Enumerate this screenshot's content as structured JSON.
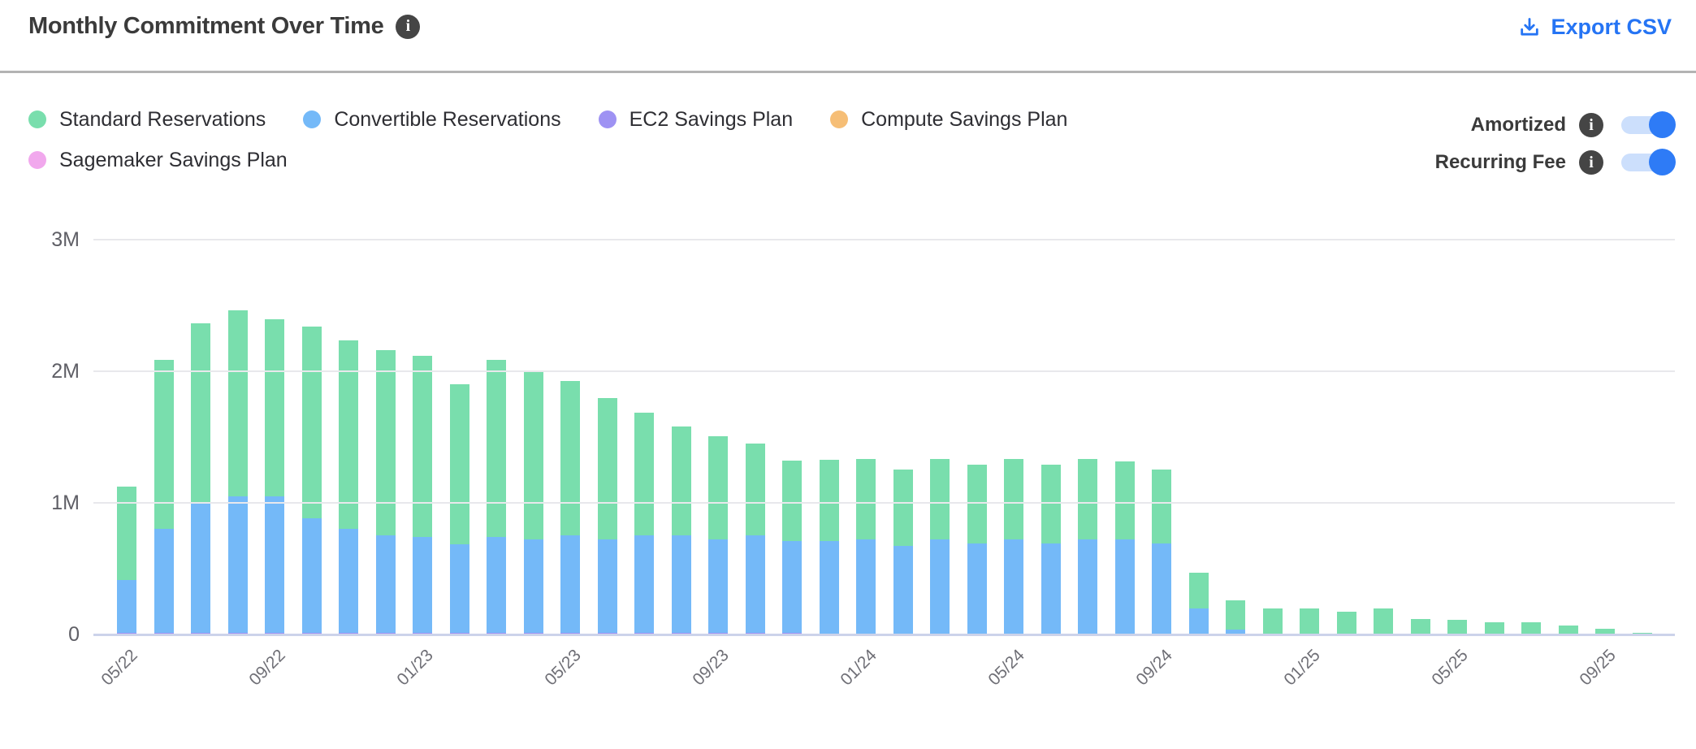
{
  "header": {
    "title": "Monthly Commitment Over Time",
    "title_info_icon": "info-circle-icon",
    "export_label": "Export CSV",
    "export_icon": "download-icon",
    "accent_color": "#2574F4"
  },
  "controls": {
    "amortized_label": "Amortized",
    "amortized_on": true,
    "recurring_fee_label": "Recurring Fee",
    "recurring_fee_on": true,
    "toggle_on_color": "#2E7BF6",
    "toggle_track_color": "#CCDFFC",
    "info_icon_color": "#454545"
  },
  "chart_data": {
    "type": "bar",
    "stacked": true,
    "title": "Monthly Commitment Over Time",
    "xlabel": "",
    "ylabel": "",
    "unit": "millions",
    "ylim": [
      0,
      3
    ],
    "grid": "horizontal",
    "legend_position": "top-left",
    "y_ticks": [
      {
        "label": "3M",
        "value": 3
      },
      {
        "label": "2M",
        "value": 2
      },
      {
        "label": "1M",
        "value": 1
      },
      {
        "label": "0",
        "value": 0
      }
    ],
    "x_tick_every": 4,
    "categories": [
      "05/22",
      "06/22",
      "07/22",
      "08/22",
      "09/22",
      "10/22",
      "11/22",
      "12/22",
      "01/23",
      "02/23",
      "03/23",
      "04/23",
      "05/23",
      "06/23",
      "07/23",
      "08/23",
      "09/23",
      "10/23",
      "11/23",
      "12/23",
      "01/24",
      "02/24",
      "03/24",
      "04/24",
      "05/24",
      "06/24",
      "07/24",
      "08/24",
      "09/24",
      "10/24",
      "11/24",
      "12/24",
      "01/25",
      "02/25",
      "03/25",
      "04/25",
      "05/25",
      "06/25",
      "07/25",
      "08/25",
      "09/25",
      "10/25"
    ],
    "series": [
      {
        "name": "Standard Reservations",
        "color": "#79DEAD",
        "values": [
          0.71,
          1.285,
          1.365,
          1.415,
          1.345,
          1.455,
          1.435,
          1.405,
          1.375,
          1.215,
          1.345,
          1.285,
          1.175,
          1.075,
          0.935,
          0.825,
          0.785,
          0.695,
          0.61,
          0.62,
          0.61,
          0.58,
          0.61,
          0.6,
          0.61,
          0.6,
          0.61,
          0.59,
          0.56,
          0.27,
          0.225,
          0.195,
          0.195,
          0.17,
          0.195,
          0.12,
          0.11,
          0.095,
          0.095,
          0.07,
          0.045,
          0.015
        ]
      },
      {
        "name": "Convertible Reservations",
        "color": "#74B9F8",
        "values": [
          0.4,
          0.79,
          0.99,
          1.04,
          1.04,
          0.87,
          0.79,
          0.74,
          0.73,
          0.67,
          0.73,
          0.71,
          0.74,
          0.71,
          0.74,
          0.74,
          0.71,
          0.74,
          0.7,
          0.71,
          0.72,
          0.67,
          0.72,
          0.69,
          0.72,
          0.69,
          0.72,
          0.72,
          0.69,
          0.2,
          0.035,
          0,
          0,
          0,
          0,
          0,
          0,
          0,
          0,
          0,
          0,
          0
        ]
      },
      {
        "name": "EC2 Savings Plan",
        "color": "#9E92F3",
        "values": [
          0.01,
          0.015,
          0.015,
          0.015,
          0.015,
          0.015,
          0.015,
          0.015,
          0.015,
          0.015,
          0.015,
          0.015,
          0.015,
          0.015,
          0.015,
          0.015,
          0.015,
          0.015,
          0.01,
          0,
          0,
          0,
          0,
          0,
          0,
          0,
          0,
          0,
          0,
          0,
          0,
          0,
          0,
          0,
          0,
          0,
          0,
          0,
          0,
          0,
          0,
          0
        ]
      },
      {
        "name": "Compute Savings Plan",
        "color": "#F6BE76",
        "values": [
          0,
          0,
          0,
          0,
          0,
          0,
          0,
          0,
          0,
          0,
          0,
          0,
          0,
          0,
          0,
          0,
          0,
          0,
          0,
          0,
          0,
          0,
          0,
          0,
          0,
          0,
          0,
          0,
          0,
          0,
          0,
          0,
          0,
          0,
          0,
          0,
          0,
          0,
          0,
          0,
          0,
          0
        ]
      },
      {
        "name": "Sagemaker Savings Plan",
        "color": "#F1A8ED",
        "values": [
          0,
          0,
          0,
          0,
          0,
          0,
          0,
          0,
          0,
          0,
          0,
          0,
          0,
          0,
          0,
          0,
          0,
          0,
          0,
          0,
          0,
          0,
          0,
          0,
          0,
          0,
          0,
          0,
          0,
          0,
          0,
          0,
          0,
          0,
          0,
          0,
          0,
          0,
          0,
          0,
          0,
          0
        ]
      }
    ]
  }
}
